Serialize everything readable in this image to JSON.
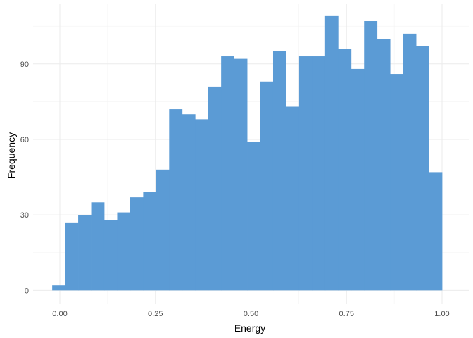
{
  "chart_data": {
    "type": "bar",
    "subtype": "histogram",
    "title": "",
    "xlabel": "Energy",
    "ylabel": "Frequency",
    "bin_width": 0.034,
    "bins": [
      {
        "start": -0.02,
        "end": 0.014,
        "count": 2
      },
      {
        "start": 0.014,
        "end": 0.048,
        "count": 27
      },
      {
        "start": 0.048,
        "end": 0.082,
        "count": 30
      },
      {
        "start": 0.082,
        "end": 0.116,
        "count": 35
      },
      {
        "start": 0.116,
        "end": 0.15,
        "count": 28
      },
      {
        "start": 0.15,
        "end": 0.184,
        "count": 31
      },
      {
        "start": 0.184,
        "end": 0.218,
        "count": 37
      },
      {
        "start": 0.218,
        "end": 0.252,
        "count": 39
      },
      {
        "start": 0.252,
        "end": 0.286,
        "count": 48
      },
      {
        "start": 0.286,
        "end": 0.32,
        "count": 72
      },
      {
        "start": 0.32,
        "end": 0.354,
        "count": 70
      },
      {
        "start": 0.354,
        "end": 0.388,
        "count": 68
      },
      {
        "start": 0.388,
        "end": 0.422,
        "count": 81
      },
      {
        "start": 0.422,
        "end": 0.456,
        "count": 93
      },
      {
        "start": 0.456,
        "end": 0.49,
        "count": 92
      },
      {
        "start": 0.49,
        "end": 0.524,
        "count": 59
      },
      {
        "start": 0.524,
        "end": 0.558,
        "count": 83
      },
      {
        "start": 0.558,
        "end": 0.592,
        "count": 95
      },
      {
        "start": 0.592,
        "end": 0.626,
        "count": 73
      },
      {
        "start": 0.626,
        "end": 0.66,
        "count": 93
      },
      {
        "start": 0.66,
        "end": 0.694,
        "count": 93
      },
      {
        "start": 0.694,
        "end": 0.728,
        "count": 109
      },
      {
        "start": 0.728,
        "end": 0.762,
        "count": 96
      },
      {
        "start": 0.762,
        "end": 0.796,
        "count": 88
      },
      {
        "start": 0.796,
        "end": 0.83,
        "count": 107
      },
      {
        "start": 0.83,
        "end": 0.864,
        "count": 100
      },
      {
        "start": 0.864,
        "end": 0.898,
        "count": 86
      },
      {
        "start": 0.898,
        "end": 0.932,
        "count": 102
      },
      {
        "start": 0.932,
        "end": 0.966,
        "count": 97
      },
      {
        "start": 0.966,
        "end": 1.0,
        "count": 47
      }
    ],
    "xlim": [
      -0.07,
      1.07
    ],
    "ylim": [
      -5.5,
      114
    ],
    "x_ticks": [
      {
        "value": 0.0,
        "label": "0.00"
      },
      {
        "value": 0.25,
        "label": "0.25"
      },
      {
        "value": 0.5,
        "label": "0.50"
      },
      {
        "value": 0.75,
        "label": "0.75"
      },
      {
        "value": 1.0,
        "label": "1.00"
      }
    ],
    "y_ticks": [
      {
        "value": 0,
        "label": "0"
      },
      {
        "value": 30,
        "label": "30"
      },
      {
        "value": 60,
        "label": "60"
      },
      {
        "value": 90,
        "label": "90"
      }
    ],
    "grid": true,
    "legend": "none",
    "bar_color": "#5b9bd5",
    "grid_color": "#ebebeb",
    "background": "#ffffff"
  }
}
